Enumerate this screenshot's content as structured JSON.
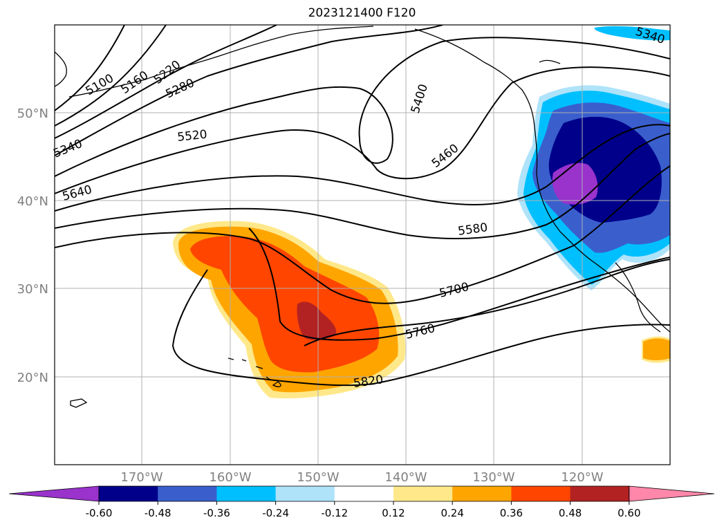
{
  "title": "2023121400 F120",
  "map": {
    "lat_labels": [
      "50°N",
      "40°N",
      "30°N",
      "20°N"
    ],
    "lon_labels": [
      "170°W",
      "160°W",
      "150°W",
      "140°W",
      "130°W",
      "120°W"
    ],
    "contour_labels": [
      "5100",
      "5160",
      "5220",
      "5280",
      "5340",
      "5520",
      "5640",
      "5400",
      "5460",
      "5580",
      "5700",
      "5760",
      "5820",
      "5340"
    ],
    "grid": true
  },
  "colorbar": {
    "ticks": [
      "-0.60",
      "-0.48",
      "-0.36",
      "-0.24",
      "-0.12",
      "0.12",
      "0.24",
      "0.36",
      "0.48",
      "0.60"
    ],
    "colors": [
      "#9933cc",
      "#00008b",
      "#3a5fcd",
      "#00bfff",
      "#aee3fa",
      "#ffffff",
      "#ffe88a",
      "#ffa500",
      "#ff4500",
      "#b22222",
      "#ff88aa"
    ]
  }
}
